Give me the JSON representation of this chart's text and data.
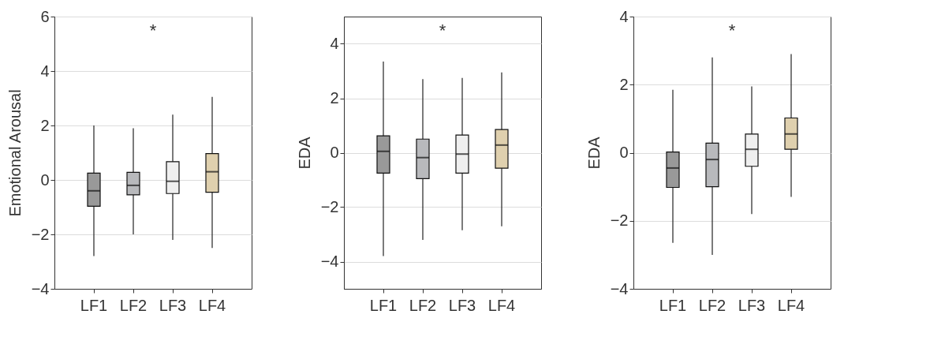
{
  "chart_data": [
    {
      "type": "box",
      "ylabel": "Emotional Arousal",
      "categories": [
        "LF1",
        "LF2",
        "LF3",
        "LF4"
      ],
      "colors": [
        "#999999",
        "#b8b9bc",
        "#efefef",
        "#dfd0ae"
      ],
      "ylim": [
        -4,
        6
      ],
      "yticks": [
        -4,
        -2,
        0,
        2,
        4,
        6
      ],
      "grid": "y",
      "annotations": [
        "*"
      ],
      "boxes": [
        {
          "low": -2.8,
          "q1": -0.97,
          "median": -0.4,
          "q3": 0.25,
          "high": 2.0
        },
        {
          "low": -2.0,
          "q1": -0.55,
          "median": -0.2,
          "q3": 0.28,
          "high": 1.9
        },
        {
          "low": -2.2,
          "q1": -0.5,
          "median": -0.05,
          "q3": 0.67,
          "high": 2.4
        },
        {
          "low": -2.5,
          "q1": -0.45,
          "median": 0.3,
          "q3": 0.97,
          "high": 3.05
        }
      ]
    },
    {
      "type": "box",
      "ylabel": "EDA",
      "categories": [
        "LF1",
        "LF2",
        "LF3",
        "LF4"
      ],
      "colors": [
        "#999999",
        "#b8b9bc",
        "#efefef",
        "#dfd0ae"
      ],
      "ylim": [
        -5,
        5
      ],
      "yticks": [
        -4,
        -2,
        0,
        2,
        4
      ],
      "grid": "y",
      "annotations": [
        "*"
      ],
      "boxes": [
        {
          "low": -3.8,
          "q1": -0.75,
          "median": 0.05,
          "q3": 0.62,
          "high": 3.35
        },
        {
          "low": -3.2,
          "q1": -0.95,
          "median": -0.18,
          "q3": 0.5,
          "high": 2.7
        },
        {
          "low": -2.85,
          "q1": -0.75,
          "median": -0.05,
          "q3": 0.65,
          "high": 2.75
        },
        {
          "low": -2.7,
          "q1": -0.57,
          "median": 0.28,
          "q3": 0.85,
          "high": 2.95
        }
      ]
    },
    {
      "type": "box",
      "ylabel": "EDA",
      "categories": [
        "LF1",
        "LF2",
        "LF3",
        "LF4"
      ],
      "colors": [
        "#999999",
        "#b8b9bc",
        "#efefef",
        "#dfd0ae"
      ],
      "ylim": [
        -4,
        4
      ],
      "yticks": [
        -4,
        -2,
        0,
        2,
        4
      ],
      "grid": "y",
      "annotations": [
        "*"
      ],
      "boxes": [
        {
          "low": -2.65,
          "q1": -1.02,
          "median": -0.45,
          "q3": 0.02,
          "high": 1.85
        },
        {
          "low": -3.0,
          "q1": -1.0,
          "median": -0.2,
          "q3": 0.28,
          "high": 2.8
        },
        {
          "low": -1.8,
          "q1": -0.4,
          "median": 0.1,
          "q3": 0.55,
          "high": 1.95
        },
        {
          "low": -1.3,
          "q1": 0.1,
          "median": 0.55,
          "q3": 1.02,
          "high": 2.9
        }
      ]
    }
  ]
}
